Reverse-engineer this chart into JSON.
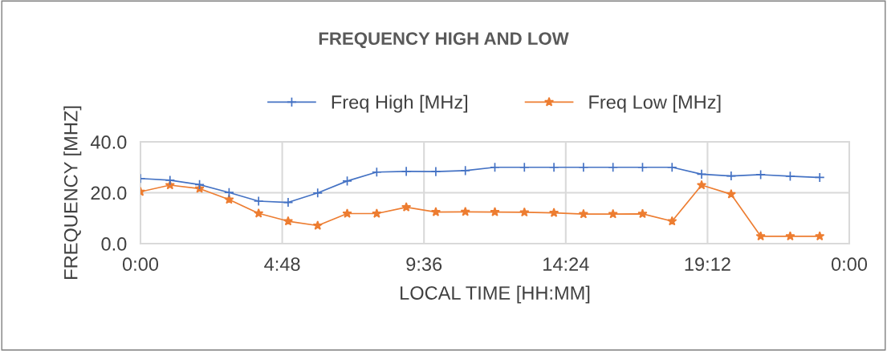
{
  "chart_data": {
    "type": "line",
    "title": "FREQUENCY HIGH AND LOW",
    "xlabel": "LOCAL TIME [HH:MM]",
    "ylabel": "FREQUENCY [MHZ]",
    "x": [
      0,
      1,
      2,
      3,
      4,
      5,
      6,
      7,
      8,
      9,
      10,
      11,
      12,
      13,
      14,
      15,
      16,
      17,
      18,
      19,
      20,
      21,
      22,
      23
    ],
    "series": [
      {
        "name": "Freq High [MHz]",
        "color": "#4472c4",
        "marker": "cross",
        "values": [
          25.6,
          24.9,
          23.2,
          20.1,
          16.7,
          16.2,
          19.9,
          24.6,
          28.1,
          28.4,
          28.3,
          28.7,
          30,
          30,
          30,
          30,
          30,
          30,
          30,
          27.3,
          26.6,
          27.1,
          26.5,
          26.0
        ]
      },
      {
        "name": "Freq Low [MHz]",
        "color": "#ed7d31",
        "marker": "star",
        "values": [
          20.4,
          23,
          21.6,
          17.3,
          11.9,
          8.8,
          7.1,
          11.8,
          11.8,
          14.3,
          12.4,
          12.5,
          12.4,
          12.3,
          12.1,
          11.6,
          11.6,
          11.7,
          8.8,
          23,
          19.4,
          2.9,
          2.9,
          2.9
        ]
      }
    ],
    "xlim": [
      0,
      24
    ],
    "xticks": [
      {
        "value": 0,
        "label": "0:00"
      },
      {
        "value": 4.8,
        "label": "4:48"
      },
      {
        "value": 9.6,
        "label": "9:36"
      },
      {
        "value": 14.4,
        "label": "14:24"
      },
      {
        "value": 19.2,
        "label": "19:12"
      },
      {
        "value": 24,
        "label": "0:00"
      }
    ],
    "ylim": [
      0,
      40
    ],
    "yticks": [
      {
        "value": 0,
        "label": "0.0"
      },
      {
        "value": 20,
        "label": "20.0"
      },
      {
        "value": 40,
        "label": "40.0"
      }
    ],
    "grid": true,
    "legend": "top",
    "line_style": "solid"
  }
}
